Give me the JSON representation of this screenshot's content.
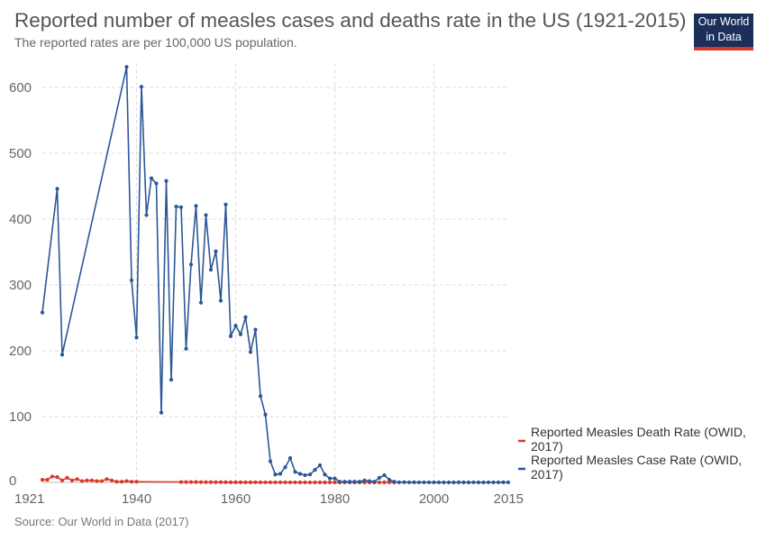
{
  "header": {
    "title": "Reported number of measles cases and deaths rate in the US (1921-2015)",
    "subtitle": "The reported rates are per 100,000 US population."
  },
  "logo": {
    "line1": "Our World",
    "line2": "in Data"
  },
  "source": "Source: Our World in Data (2017)",
  "colors": {
    "death": "#d9392b",
    "case": "#2b5797",
    "grid": "#dddddd"
  },
  "chart_data": {
    "type": "line",
    "title": "Reported number of measles cases and deaths rate in the US (1921-2015)",
    "subtitle": "The reported rates are per 100,000 US population.",
    "xlim": [
      1921,
      2015
    ],
    "ylim": [
      0,
      630
    ],
    "x_ticks": [
      "1921",
      "1940",
      "1960",
      "1980",
      "2000",
      "2015"
    ],
    "x_tick_values": [
      1921,
      1940,
      1960,
      1980,
      2000,
      2015
    ],
    "y_ticks": [
      "0",
      "100",
      "200",
      "300",
      "400",
      "500",
      "600"
    ],
    "y_tick_values": [
      0,
      100,
      200,
      300,
      400,
      500,
      600
    ],
    "grid": true,
    "legend_position": "right",
    "series": [
      {
        "name": "Reported Measles Death Rate (OWID, 2017)",
        "color": "#d9392b",
        "points": [
          [
            1921,
            4
          ],
          [
            1922,
            4
          ],
          [
            1923,
            9
          ],
          [
            1924,
            8
          ],
          [
            1925,
            3
          ],
          [
            1926,
            7
          ],
          [
            1927,
            3
          ],
          [
            1928,
            5
          ],
          [
            1929,
            2
          ],
          [
            1930,
            3
          ],
          [
            1931,
            3
          ],
          [
            1932,
            2
          ],
          [
            1933,
            2
          ],
          [
            1934,
            5
          ],
          [
            1935,
            3
          ],
          [
            1936,
            1
          ],
          [
            1937,
            1
          ],
          [
            1938,
            2
          ],
          [
            1939,
            1
          ],
          [
            1940,
            1
          ],
          [
            1949,
            0.5
          ],
          [
            1950,
            0.5
          ],
          [
            1951,
            0.5
          ],
          [
            1952,
            0.5
          ],
          [
            1953,
            0.4
          ],
          [
            1954,
            0.4
          ],
          [
            1955,
            0.4
          ],
          [
            1956,
            0.3
          ],
          [
            1957,
            0.3
          ],
          [
            1958,
            0.3
          ],
          [
            1959,
            0.2
          ],
          [
            1960,
            0.2
          ],
          [
            1961,
            0.2
          ],
          [
            1962,
            0.2
          ],
          [
            1963,
            0.2
          ],
          [
            1964,
            0.2
          ],
          [
            1965,
            0.1
          ],
          [
            1966,
            0.1
          ],
          [
            1967,
            0.1
          ],
          [
            1968,
            0.1
          ],
          [
            1969,
            0.1
          ],
          [
            1970,
            0.1
          ],
          [
            1971,
            0.1
          ],
          [
            1972,
            0.1
          ],
          [
            1973,
            0
          ],
          [
            1974,
            0
          ],
          [
            1975,
            0
          ],
          [
            1976,
            0
          ],
          [
            1977,
            0
          ],
          [
            1978,
            0
          ],
          [
            1979,
            0
          ],
          [
            1980,
            0
          ],
          [
            1981,
            0
          ],
          [
            1982,
            0
          ],
          [
            1983,
            0
          ],
          [
            1984,
            0
          ],
          [
            1985,
            0
          ],
          [
            1986,
            0
          ],
          [
            1987,
            0
          ],
          [
            1988,
            0
          ],
          [
            1989,
            0
          ],
          [
            1990,
            0.2
          ],
          [
            1991,
            0.1
          ],
          [
            1992,
            0
          ]
        ]
      },
      {
        "name": "Reported Measles Case Rate (OWID, 2017)",
        "color": "#2b5797",
        "points": [
          [
            1921,
            258
          ],
          [
            1924,
            446
          ],
          [
            1925,
            194
          ],
          [
            1938,
            631
          ],
          [
            1939,
            307
          ],
          [
            1940,
            220
          ],
          [
            1941,
            601
          ],
          [
            1942,
            406
          ],
          [
            1943,
            462
          ],
          [
            1944,
            454
          ],
          [
            1945,
            106
          ],
          [
            1946,
            458
          ],
          [
            1947,
            156
          ],
          [
            1948,
            419
          ],
          [
            1949,
            418
          ],
          [
            1950,
            203
          ],
          [
            1951,
            331
          ],
          [
            1952,
            420
          ],
          [
            1953,
            273
          ],
          [
            1954,
            406
          ],
          [
            1955,
            323
          ],
          [
            1956,
            351
          ],
          [
            1957,
            276
          ],
          [
            1958,
            422
          ],
          [
            1959,
            222
          ],
          [
            1960,
            238
          ],
          [
            1961,
            225
          ],
          [
            1962,
            251
          ],
          [
            1963,
            198
          ],
          [
            1964,
            232
          ],
          [
            1965,
            131
          ],
          [
            1966,
            103
          ],
          [
            1967,
            32
          ],
          [
            1968,
            12
          ],
          [
            1969,
            13
          ],
          [
            1970,
            23
          ],
          [
            1971,
            37
          ],
          [
            1972,
            16
          ],
          [
            1973,
            13
          ],
          [
            1974,
            11
          ],
          [
            1975,
            12
          ],
          [
            1976,
            19
          ],
          [
            1977,
            26
          ],
          [
            1978,
            12
          ],
          [
            1979,
            6
          ],
          [
            1980,
            6
          ],
          [
            1981,
            1
          ],
          [
            1982,
            1
          ],
          [
            1983,
            1
          ],
          [
            1984,
            1
          ],
          [
            1985,
            1
          ],
          [
            1986,
            3
          ],
          [
            1987,
            2
          ],
          [
            1988,
            1
          ],
          [
            1989,
            7
          ],
          [
            1990,
            11
          ],
          [
            1991,
            4
          ],
          [
            1992,
            1
          ],
          [
            1993,
            0.1
          ],
          [
            1994,
            0.4
          ],
          [
            1995,
            0.1
          ],
          [
            1996,
            0.2
          ],
          [
            1997,
            0.1
          ],
          [
            1998,
            0.1
          ],
          [
            1999,
            0.1
          ],
          [
            2000,
            0.1
          ],
          [
            2001,
            0.1
          ],
          [
            2002,
            0
          ],
          [
            2003,
            0
          ],
          [
            2004,
            0
          ],
          [
            2005,
            0.2
          ],
          [
            2006,
            0
          ],
          [
            2007,
            0
          ],
          [
            2008,
            0.1
          ],
          [
            2009,
            0
          ],
          [
            2010,
            0
          ],
          [
            2011,
            0.1
          ],
          [
            2012,
            0.1
          ],
          [
            2013,
            0.1
          ],
          [
            2014,
            0.2
          ],
          [
            2015,
            0.1
          ]
        ]
      }
    ]
  }
}
